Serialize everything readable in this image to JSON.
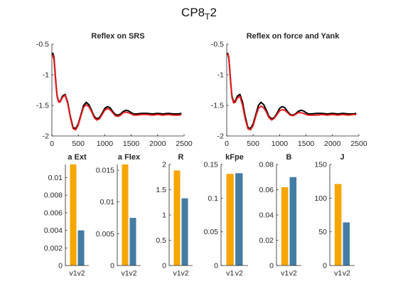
{
  "figure": {
    "title_main": "CP8",
    "title_sub": "T",
    "title_end": "2"
  },
  "colors": {
    "measured": "#000000",
    "model": "#e8191b",
    "v1": "#f7a600",
    "v2": "#447da3",
    "axis": "#262626"
  },
  "chart_data": [
    {
      "type": "line",
      "title": "Reflex on SRS",
      "xlim": [
        0,
        2500
      ],
      "ylim": [
        -2,
        -0.5
      ],
      "xticks": [
        0,
        500,
        1000,
        1500,
        2000,
        2500
      ],
      "yticks": [
        -2,
        -1.5,
        -1,
        -0.5
      ],
      "xtick_labels": [
        "0",
        "500",
        "1000",
        "1500",
        "2000",
        "2500"
      ],
      "ytick_labels": [
        "-2",
        "-1.5",
        "-1",
        "-0.5"
      ],
      "series": [
        {
          "color": "#000000",
          "x": [
            0,
            20,
            40,
            60,
            80,
            100,
            130,
            160,
            200,
            250,
            300,
            350,
            400,
            450,
            500,
            550,
            600,
            650,
            700,
            750,
            800,
            850,
            900,
            950,
            1000,
            1050,
            1100,
            1150,
            1200,
            1250,
            1300,
            1350,
            1400,
            1450,
            1500,
            1550,
            1600,
            1700,
            1800,
            1900,
            2000,
            2100,
            2200,
            2300,
            2400,
            2450
          ],
          "y": [
            -0.67,
            -0.65,
            -0.72,
            -0.95,
            -1.18,
            -1.35,
            -1.44,
            -1.43,
            -1.35,
            -1.32,
            -1.45,
            -1.68,
            -1.86,
            -1.88,
            -1.8,
            -1.65,
            -1.5,
            -1.45,
            -1.49,
            -1.58,
            -1.68,
            -1.72,
            -1.7,
            -1.63,
            -1.55,
            -1.52,
            -1.54,
            -1.6,
            -1.65,
            -1.66,
            -1.64,
            -1.6,
            -1.58,
            -1.59,
            -1.62,
            -1.64,
            -1.64,
            -1.63,
            -1.63,
            -1.64,
            -1.63,
            -1.64,
            -1.63,
            -1.64,
            -1.64,
            -1.63
          ]
        },
        {
          "color": "#e8191b",
          "x": [
            0,
            20,
            40,
            60,
            80,
            100,
            130,
            160,
            200,
            250,
            300,
            350,
            400,
            450,
            500,
            550,
            600,
            650,
            700,
            750,
            800,
            850,
            900,
            950,
            1000,
            1050,
            1100,
            1150,
            1200,
            1250,
            1300,
            1350,
            1400,
            1450,
            1500,
            1550,
            1600,
            1700,
            1800,
            1900,
            2000,
            2100,
            2200,
            2300,
            2400,
            2450
          ],
          "y": [
            -0.7,
            -0.68,
            -0.76,
            -0.98,
            -1.2,
            -1.36,
            -1.45,
            -1.44,
            -1.37,
            -1.33,
            -1.47,
            -1.7,
            -1.88,
            -1.9,
            -1.82,
            -1.67,
            -1.53,
            -1.49,
            -1.52,
            -1.6,
            -1.7,
            -1.74,
            -1.72,
            -1.65,
            -1.58,
            -1.55,
            -1.57,
            -1.62,
            -1.67,
            -1.68,
            -1.66,
            -1.62,
            -1.61,
            -1.62,
            -1.64,
            -1.66,
            -1.66,
            -1.65,
            -1.65,
            -1.66,
            -1.65,
            -1.66,
            -1.65,
            -1.66,
            -1.66,
            -1.65
          ]
        }
      ]
    },
    {
      "type": "line",
      "title": "Reflex on force and Yank",
      "xlim": [
        0,
        2500
      ],
      "ylim": [
        -2,
        -0.5
      ],
      "xticks": [
        0,
        500,
        1000,
        1500,
        2000,
        2500
      ],
      "yticks": [
        -2,
        -1.5,
        -1,
        -0.5
      ],
      "xtick_labels": [
        "0",
        "500",
        "1000",
        "1500",
        "2000",
        "2500"
      ],
      "ytick_labels": [
        "-2",
        "-1.5",
        "-1",
        "-0.5"
      ],
      "series": [
        {
          "color": "#000000",
          "x": [
            0,
            20,
            40,
            60,
            80,
            100,
            130,
            160,
            200,
            250,
            300,
            350,
            400,
            450,
            500,
            550,
            600,
            650,
            700,
            750,
            800,
            850,
            900,
            950,
            1000,
            1050,
            1100,
            1150,
            1200,
            1250,
            1300,
            1350,
            1400,
            1450,
            1500,
            1550,
            1600,
            1700,
            1800,
            1900,
            2000,
            2100,
            2200,
            2300,
            2400,
            2450
          ],
          "y": [
            -0.67,
            -0.65,
            -0.72,
            -0.95,
            -1.18,
            -1.35,
            -1.44,
            -1.43,
            -1.35,
            -1.32,
            -1.45,
            -1.68,
            -1.86,
            -1.88,
            -1.8,
            -1.65,
            -1.5,
            -1.45,
            -1.49,
            -1.58,
            -1.68,
            -1.72,
            -1.7,
            -1.63,
            -1.55,
            -1.52,
            -1.54,
            -1.6,
            -1.65,
            -1.66,
            -1.64,
            -1.6,
            -1.58,
            -1.59,
            -1.62,
            -1.64,
            -1.64,
            -1.63,
            -1.63,
            -1.64,
            -1.63,
            -1.64,
            -1.63,
            -1.64,
            -1.64,
            -1.63
          ]
        },
        {
          "color": "#e8191b",
          "x": [
            0,
            20,
            40,
            60,
            80,
            100,
            130,
            160,
            200,
            250,
            300,
            350,
            400,
            450,
            500,
            550,
            600,
            650,
            700,
            750,
            800,
            850,
            900,
            950,
            1000,
            1050,
            1100,
            1150,
            1200,
            1250,
            1300,
            1350,
            1400,
            1450,
            1500,
            1550,
            1600,
            1700,
            1800,
            1900,
            2000,
            2100,
            2200,
            2300,
            2400,
            2450
          ],
          "y": [
            -0.68,
            -0.66,
            -0.74,
            -0.97,
            -1.2,
            -1.37,
            -1.46,
            -1.45,
            -1.38,
            -1.35,
            -1.5,
            -1.72,
            -1.88,
            -1.9,
            -1.83,
            -1.68,
            -1.55,
            -1.51,
            -1.54,
            -1.61,
            -1.7,
            -1.74,
            -1.71,
            -1.65,
            -1.59,
            -1.57,
            -1.58,
            -1.62,
            -1.66,
            -1.67,
            -1.65,
            -1.62,
            -1.62,
            -1.63,
            -1.65,
            -1.66,
            -1.66,
            -1.66,
            -1.65,
            -1.66,
            -1.65,
            -1.66,
            -1.65,
            -1.66,
            -1.65,
            -1.65
          ]
        }
      ]
    },
    {
      "type": "bar",
      "title": "a Ext",
      "categories": [
        "v1",
        "v2"
      ],
      "values": [
        0.0115,
        0.004
      ],
      "ylim": [
        0,
        0.0115
      ],
      "yticks": [
        0,
        0.002,
        0.004,
        0.006,
        0.008,
        0.01
      ],
      "ytick_labels": [
        "0",
        "0.002",
        "0.004",
        "0.006",
        "0.008",
        "0.01"
      ]
    },
    {
      "type": "bar",
      "title": "a Flex",
      "categories": [
        "v1",
        "v2"
      ],
      "values": [
        0.0159,
        0.0075
      ],
      "ylim": [
        0,
        0.0159
      ],
      "yticks": [
        0,
        0.005,
        0.01,
        0.015
      ],
      "ytick_labels": [
        "0",
        "0.005",
        "0.01",
        "0.015"
      ]
    },
    {
      "type": "bar",
      "title": "R",
      "categories": [
        "v1",
        "v2"
      ],
      "values": [
        1.88,
        1.33
      ],
      "ylim": [
        0,
        2
      ],
      "yticks": [
        0,
        0.5,
        1,
        1.5,
        2
      ],
      "ytick_labels": [
        "0",
        "0.5",
        "1",
        "1.5",
        "2"
      ]
    },
    {
      "type": "bar",
      "title": "kFpe",
      "categories": [
        "v1",
        "v2"
      ],
      "values": [
        0.136,
        0.137
      ],
      "ylim": [
        0,
        0.15
      ],
      "yticks": [
        0,
        0.05,
        0.1,
        0.15
      ],
      "ytick_labels": [
        "0",
        "0.05",
        "0.1",
        "0.15"
      ]
    },
    {
      "type": "bar",
      "title": "B",
      "categories": [
        "v1",
        "v2"
      ],
      "values": [
        0.062,
        0.07
      ],
      "ylim": [
        0,
        0.08
      ],
      "yticks": [
        0,
        0.02,
        0.04,
        0.06,
        0.08
      ],
      "ytick_labels": [
        "0",
        "0.02",
        "0.04",
        "0.06",
        "0.08"
      ]
    },
    {
      "type": "bar",
      "title": "J",
      "categories": [
        "v1",
        "v2"
      ],
      "values": [
        121,
        64
      ],
      "ylim": [
        0,
        150
      ],
      "yticks": [
        0,
        50,
        100,
        150
      ],
      "ytick_labels": [
        "0",
        "50",
        "100",
        "150"
      ]
    }
  ]
}
